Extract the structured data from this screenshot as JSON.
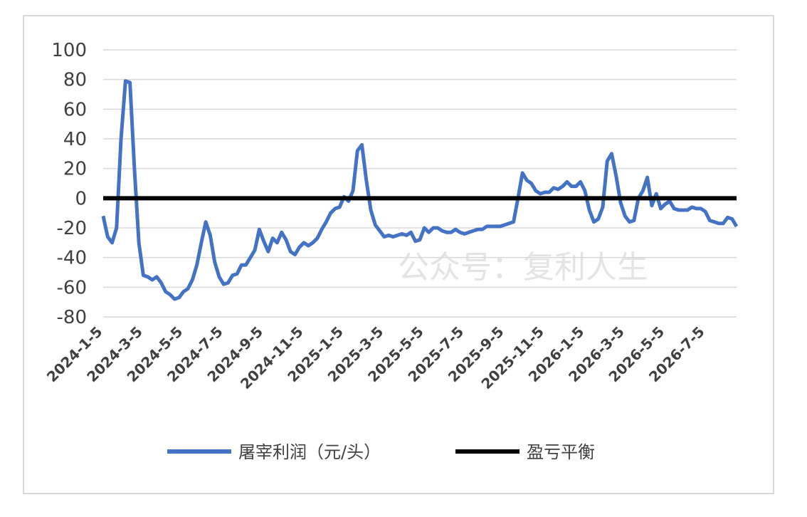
{
  "chart_data": {
    "type": "line",
    "watermark": "公众号：复利人生",
    "categories": [
      "2024-1-5",
      null,
      null,
      null,
      null,
      null,
      null,
      null,
      null,
      "2024-3-5",
      null,
      null,
      null,
      null,
      null,
      null,
      null,
      null,
      "2024-5-5",
      null,
      null,
      null,
      null,
      null,
      null,
      null,
      null,
      "2024-7-5",
      null,
      null,
      null,
      null,
      null,
      null,
      null,
      null,
      "2024-9-5",
      null,
      null,
      null,
      null,
      null,
      null,
      null,
      null,
      "2024-11-5",
      null,
      null,
      null,
      null,
      null,
      null,
      null,
      null,
      "2025-1-5",
      null,
      null,
      null,
      null,
      null,
      null,
      null,
      null,
      "2025-3-5",
      null,
      null,
      null,
      null,
      null,
      null,
      null,
      null,
      "2025-5-5",
      null,
      null,
      null,
      null,
      null,
      null,
      null,
      null,
      "2025-7-5",
      null,
      null,
      null,
      null,
      null,
      null,
      null,
      null,
      "2025-9-5",
      null,
      null,
      null,
      null,
      null,
      null,
      null,
      null,
      "2025-11-5",
      null,
      null,
      null,
      null,
      null,
      null,
      null,
      null,
      "2026-1-5",
      null,
      null,
      null,
      null,
      null,
      null,
      null,
      null,
      "2026-3-5",
      null,
      null,
      null,
      null,
      null,
      null,
      null,
      null,
      "2026-5-5",
      null,
      null,
      null,
      null,
      null,
      null,
      null,
      null,
      "2026-7-5",
      null,
      null,
      null,
      null,
      null,
      null,
      null
    ],
    "series": [
      {
        "name": "屠宰利润（元/头）",
        "color": "#4472c4",
        "values": [
          -12,
          -26,
          -30,
          -20,
          40,
          79,
          78,
          20,
          -30,
          -52,
          -53,
          -55,
          -53,
          -57,
          -63,
          -65,
          -68,
          -67,
          -63,
          -61,
          -55,
          -45,
          -30,
          -16,
          -25,
          -43,
          -53,
          -58,
          -57,
          -52,
          -51,
          -45,
          -45,
          -40,
          -35,
          -21,
          -29,
          -36,
          -27,
          -30,
          -23,
          -28,
          -36,
          -38,
          -33,
          -30,
          -32,
          -30,
          -27,
          -21,
          -16,
          -10,
          -7,
          -6,
          1,
          -2,
          5,
          32,
          36,
          12,
          -8,
          -18,
          -22,
          -26,
          -25,
          -26,
          -25,
          -24,
          -25,
          -23,
          -29,
          -28,
          -20,
          -23,
          -20,
          -20,
          -22,
          -23,
          -23,
          -21,
          -23,
          -24,
          -23,
          -22,
          -21,
          -21,
          -19,
          -19,
          -19,
          -19,
          -18,
          -17,
          -16,
          0,
          17,
          12,
          10,
          5,
          3,
          4,
          4,
          7,
          6,
          8,
          11,
          8,
          8,
          11,
          5,
          -8,
          -16,
          -14,
          -6,
          25,
          30,
          15,
          -3,
          -12,
          -16,
          -15,
          0,
          5,
          14,
          -5,
          3,
          -7,
          -4,
          -2,
          -7,
          -8,
          -8,
          -8,
          -6,
          -7,
          -7,
          -9,
          -15,
          -16,
          -17,
          -17,
          -13,
          -14,
          -19
        ]
      },
      {
        "name": "盈亏平衡",
        "color": "#000000",
        "values": [
          0,
          0,
          0,
          0,
          0,
          0,
          0,
          0,
          0,
          0,
          0,
          0,
          0,
          0,
          0,
          0,
          0,
          0,
          0,
          0,
          0,
          0,
          0,
          0,
          0,
          0,
          0,
          0,
          0,
          0,
          0,
          0,
          0,
          0,
          0,
          0,
          0,
          0,
          0,
          0,
          0,
          0,
          0,
          0,
          0,
          0,
          0,
          0,
          0,
          0,
          0,
          0,
          0,
          0,
          0,
          0,
          0,
          0,
          0,
          0,
          0,
          0,
          0,
          0,
          0,
          0,
          0,
          0,
          0,
          0,
          0,
          0,
          0,
          0,
          0,
          0,
          0,
          0,
          0,
          0,
          0,
          0,
          0,
          0,
          0,
          0,
          0,
          0,
          0,
          0,
          0,
          0,
          0,
          0,
          0,
          0,
          0,
          0,
          0,
          0,
          0,
          0,
          0,
          0,
          0,
          0,
          0,
          0,
          0,
          0,
          0,
          0,
          0,
          0,
          0,
          0,
          0,
          0,
          0,
          0,
          0,
          0,
          0,
          0,
          0,
          0,
          0,
          0,
          0,
          0,
          0,
          0,
          0,
          0,
          0,
          0,
          0,
          0,
          0,
          0,
          0,
          0,
          0
        ]
      }
    ],
    "ylim": [
      -80,
      100
    ],
    "yticks": [
      -80,
      -60,
      -40,
      -20,
      0,
      20,
      40,
      60,
      80,
      100
    ],
    "grid": true
  }
}
